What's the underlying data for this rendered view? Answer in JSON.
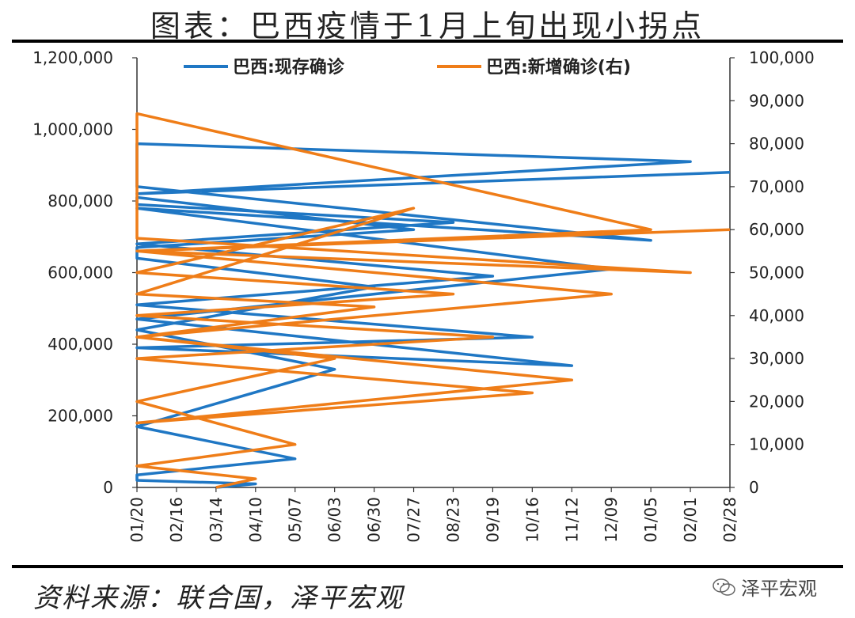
{
  "title": "图表：巴西疫情于1月上旬出现小拐点",
  "source": "资料来源：联合国，泽平宏观",
  "watermark": "泽平宏观",
  "chart_data": {
    "type": "line",
    "x_ticks": [
      "01/20",
      "02/16",
      "03/14",
      "04/10",
      "05/07",
      "06/03",
      "06/30",
      "07/27",
      "08/23",
      "09/19",
      "10/16",
      "11/12",
      "12/09",
      "01/05",
      "02/01",
      "02/28"
    ],
    "y_left": {
      "ticks": [
        "0",
        "200,000",
        "400,000",
        "600,000",
        "800,000",
        "1,000,000",
        "1,200,000"
      ],
      "range": [
        0,
        1200000
      ]
    },
    "y_right": {
      "ticks": [
        "0",
        "10,000",
        "20,000",
        "30,000",
        "40,000",
        "50,000",
        "60,000",
        "70,000",
        "80,000",
        "90,000",
        "100,000"
      ],
      "range": [
        0,
        100000
      ]
    },
    "series": [
      {
        "name": "巴西:现存确诊",
        "axis": "left",
        "color": "#1f77c4",
        "points": [
          [
            "03/14",
            0
          ],
          [
            "04/10",
            10000
          ],
          [
            "04/17",
            20000
          ],
          [
            "04/24",
            35000
          ],
          [
            "05/07",
            80000
          ],
          [
            "05/21",
            170000
          ],
          [
            "06/03",
            330000
          ],
          [
            "06/17",
            440000
          ],
          [
            "06/30",
            560000
          ],
          [
            "07/07",
            640000
          ],
          [
            "07/14",
            670000
          ],
          [
            "07/27",
            720000
          ],
          [
            "08/05",
            810000
          ],
          [
            "08/13",
            790000
          ],
          [
            "08/23",
            740000
          ],
          [
            "09/05",
            680000
          ],
          [
            "09/19",
            590000
          ],
          [
            "10/02",
            510000
          ],
          [
            "10/16",
            420000
          ],
          [
            "10/29",
            390000
          ],
          [
            "11/12",
            340000
          ],
          [
            "11/26",
            470000
          ],
          [
            "12/09",
            610000
          ],
          [
            "12/22",
            780000
          ],
          [
            "01/05",
            690000
          ],
          [
            "01/12",
            840000
          ],
          [
            "01/20",
            960000
          ],
          [
            "02/01",
            910000
          ],
          [
            "02/14",
            820000
          ],
          [
            "02/28",
            880000
          ]
        ]
      },
      {
        "name": "巴西:新增确诊(右)",
        "axis": "right",
        "color": "#ef7d18",
        "points": [
          [
            "03/14",
            0
          ],
          [
            "04/10",
            2000
          ],
          [
            "04/24",
            5000
          ],
          [
            "05/07",
            10000
          ],
          [
            "05/21",
            20000
          ],
          [
            "06/03",
            30000
          ],
          [
            "06/17",
            35000
          ],
          [
            "06/30",
            42000
          ],
          [
            "07/14",
            45000
          ],
          [
            "07/27",
            65000
          ],
          [
            "08/10",
            50000
          ],
          [
            "08/23",
            45000
          ],
          [
            "09/05",
            40000
          ],
          [
            "09/19",
            35000
          ],
          [
            "10/02",
            30000
          ],
          [
            "10/16",
            22000
          ],
          [
            "10/29",
            15000
          ],
          [
            "11/12",
            25000
          ],
          [
            "11/26",
            35000
          ],
          [
            "12/09",
            45000
          ],
          [
            "12/22",
            55000
          ],
          [
            "01/05",
            60000
          ],
          [
            "01/12",
            87000
          ],
          [
            "01/20",
            58000
          ],
          [
            "02/01",
            50000
          ],
          [
            "02/14",
            55000
          ],
          [
            "02/28",
            60000
          ]
        ]
      }
    ],
    "legend_position": "top"
  }
}
